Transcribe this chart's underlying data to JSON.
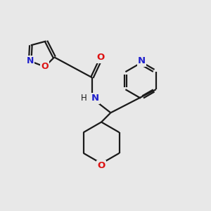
{
  "background_color": "#e8e8e8",
  "bond_color": "#1a1a1a",
  "N_color": "#2020cc",
  "O_color": "#dd1111",
  "figsize": [
    3.0,
    3.0
  ],
  "dpi": 100,
  "xlim": [
    0,
    10
  ],
  "ylim": [
    0,
    10
  ]
}
